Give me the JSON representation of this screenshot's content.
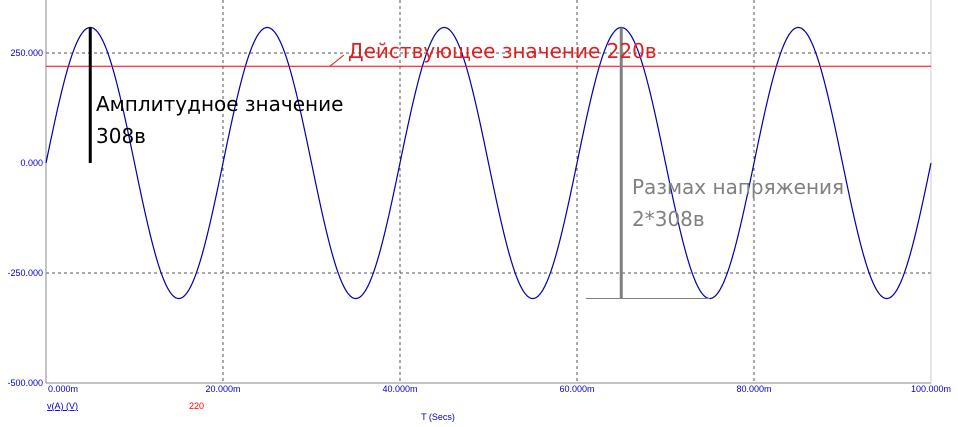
{
  "chart_data": {
    "type": "line",
    "xlabel": "T (Secs)",
    "x_ticks": [
      "0.000m",
      "20.000m",
      "40.000m",
      "60.000m",
      "80.000m",
      "100.000m"
    ],
    "y_ticks": [
      "250.000",
      "0.000",
      "-250.000",
      "-500.000"
    ],
    "xlim": [
      0,
      0.1
    ],
    "ylim": [
      -500,
      330
    ],
    "grid": true,
    "series": [
      {
        "name": "v(A) (V)",
        "color": "#0000aa",
        "function": "sine",
        "amplitude": 308,
        "frequency_hz": 50,
        "phase": 0
      },
      {
        "name": "220",
        "color": "#ff0000",
        "function": "constant",
        "value": 220
      }
    ],
    "annotations": {
      "amplitude": {
        "text_line1": "Амплитудное значение",
        "text_line2": "308в",
        "color": "#000000",
        "x": 0.005,
        "y_from": 0,
        "y_to": 308
      },
      "rms": {
        "text": "Действующее значение 220в",
        "color": "#e02020"
      },
      "peak_to_peak": {
        "text_line1": "Размах напряжения",
        "text_line2": "2*308в",
        "color": "#808080",
        "x": 0.065,
        "y_from": -308,
        "y_to": 308,
        "base_x_from": 0.061,
        "base_x_to": 0.075
      }
    }
  }
}
